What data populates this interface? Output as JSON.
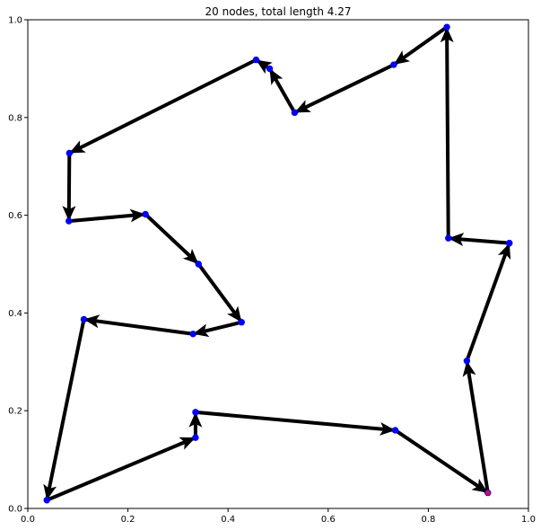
{
  "chart_data": {
    "type": "line",
    "title": "20 nodes, total length 4.27",
    "xlabel": "",
    "ylabel": "",
    "xlim": [
      0,
      1
    ],
    "ylim": [
      0,
      1
    ],
    "grid": false,
    "x_ticks": [
      "0.0",
      "0.2",
      "0.4",
      "0.6",
      "0.8",
      "1.0"
    ],
    "y_ticks": [
      "0.0",
      "0.2",
      "0.4",
      "0.6",
      "0.8",
      "1.0"
    ],
    "colors": {
      "edge": "#000000",
      "node": "#0000ff",
      "start_node": "#cc1155"
    },
    "nodes": [
      {
        "x": 0.919,
        "y": 0.032
      },
      {
        "x": 0.877,
        "y": 0.302
      },
      {
        "x": 0.962,
        "y": 0.543
      },
      {
        "x": 0.84,
        "y": 0.553
      },
      {
        "x": 0.837,
        "y": 0.985
      },
      {
        "x": 0.731,
        "y": 0.908
      },
      {
        "x": 0.533,
        "y": 0.81
      },
      {
        "x": 0.483,
        "y": 0.9
      },
      {
        "x": 0.456,
        "y": 0.918
      },
      {
        "x": 0.083,
        "y": 0.727
      },
      {
        "x": 0.082,
        "y": 0.588
      },
      {
        "x": 0.235,
        "y": 0.602
      },
      {
        "x": 0.341,
        "y": 0.5
      },
      {
        "x": 0.427,
        "y": 0.381
      },
      {
        "x": 0.33,
        "y": 0.357
      },
      {
        "x": 0.112,
        "y": 0.387
      },
      {
        "x": 0.038,
        "y": 0.017
      },
      {
        "x": 0.335,
        "y": 0.145
      },
      {
        "x": 0.335,
        "y": 0.197
      },
      {
        "x": 0.734,
        "y": 0.16
      }
    ],
    "start_index": 0
  }
}
